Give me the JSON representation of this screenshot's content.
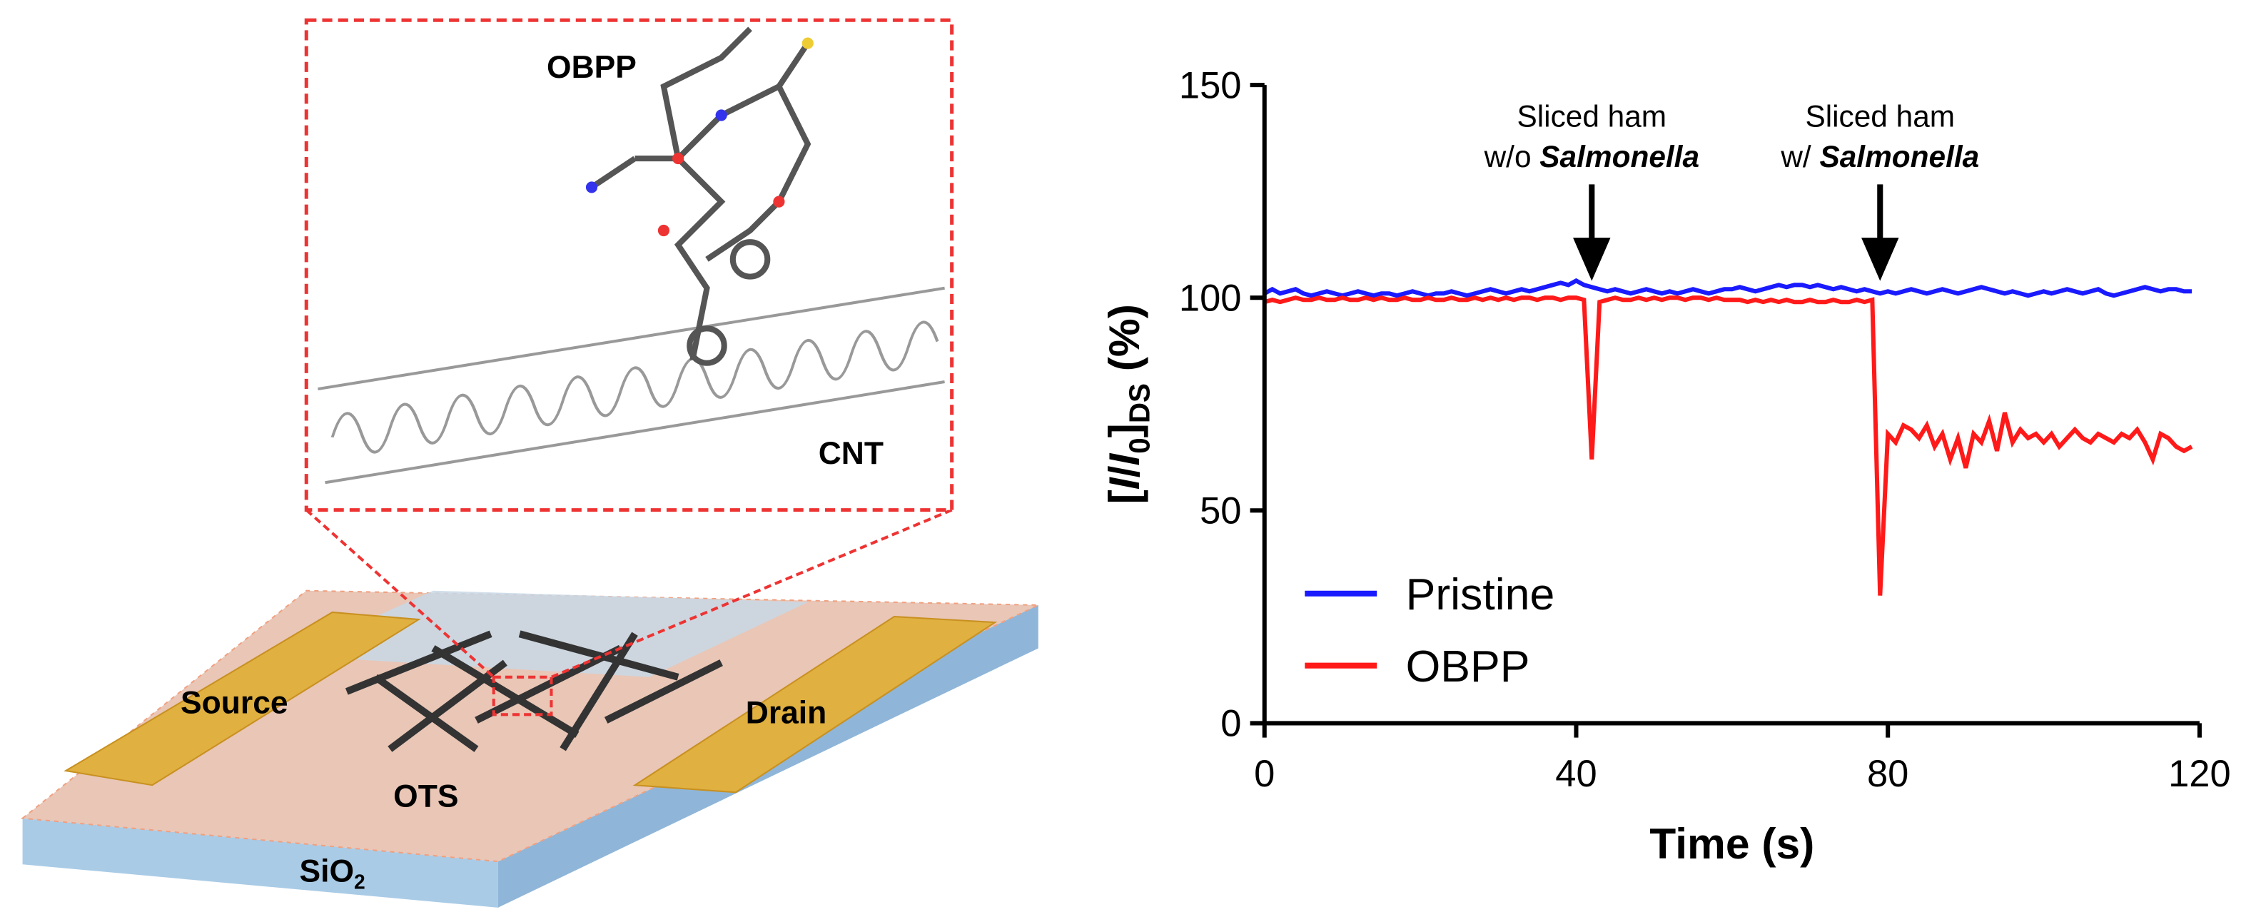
{
  "diagram": {
    "molecule": "OBPP",
    "tube": "CNT",
    "source": "Source",
    "drain": "Drain",
    "layer": "OTS",
    "substrate": "SiO",
    "substrate_sub": "2"
  },
  "chart_data": {
    "type": "line",
    "xlabel": "Time (s)",
    "ylabel": [
      {
        "text": "[",
        "style": "normal"
      },
      {
        "text": "I",
        "style": "italic"
      },
      {
        "text": "/",
        "style": "normal"
      },
      {
        "text": "I",
        "style": "italic"
      },
      {
        "text": "0",
        "style": "sub"
      },
      {
        "text": "]",
        "style": "normal"
      },
      {
        "text": "DS",
        "style": "sub"
      },
      {
        "text": " (%)",
        "style": "normal"
      }
    ],
    "annotations": [
      {
        "x": 42,
        "line1": "Sliced ham",
        "prefix": "w/o ",
        "italic": "Salmonella"
      },
      {
        "x": 79,
        "line1": "Sliced ham",
        "prefix": "w/ ",
        "italic": "Salmonella"
      }
    ],
    "x": [
      0,
      1,
      2,
      3,
      4,
      5,
      6,
      7,
      8,
      9,
      10,
      11,
      12,
      13,
      14,
      15,
      16,
      17,
      18,
      19,
      20,
      21,
      22,
      23,
      24,
      25,
      26,
      27,
      28,
      29,
      30,
      31,
      32,
      33,
      34,
      35,
      36,
      37,
      38,
      39,
      40,
      41,
      42,
      43,
      44,
      45,
      46,
      47,
      48,
      49,
      50,
      51,
      52,
      53,
      54,
      55,
      56,
      57,
      58,
      59,
      60,
      61,
      62,
      63,
      64,
      65,
      66,
      67,
      68,
      69,
      70,
      71,
      72,
      73,
      74,
      75,
      76,
      77,
      78,
      79,
      80,
      81,
      82,
      83,
      84,
      85,
      86,
      87,
      88,
      89,
      90,
      91,
      92,
      93,
      94,
      95,
      96,
      97,
      98,
      99,
      100,
      101,
      102,
      103,
      104,
      105,
      106,
      107,
      108,
      109,
      110,
      111,
      112,
      113,
      114,
      115,
      116,
      117,
      118,
      119
    ],
    "series": [
      {
        "name": "Pristine",
        "color": "#1a1aff",
        "values": [
          101,
          102,
          101,
          101.5,
          102,
          101,
          100.5,
          101,
          101.5,
          101,
          100.5,
          101,
          101.5,
          101,
          100.5,
          101,
          101,
          100.5,
          101,
          101.5,
          101,
          100.5,
          101,
          101,
          101.5,
          101,
          100.5,
          101,
          101.5,
          102,
          101.5,
          101,
          101.5,
          102,
          101.5,
          102,
          102.5,
          103,
          103.5,
          103,
          104,
          103,
          102.5,
          102,
          101.5,
          102,
          101.5,
          101,
          101.5,
          102,
          101.5,
          101,
          101.5,
          101,
          101.5,
          102,
          101.5,
          101,
          101.5,
          102,
          102,
          102.5,
          102,
          101.5,
          102,
          102.5,
          103,
          102.5,
          103,
          103,
          102.5,
          103,
          102.5,
          102,
          102.5,
          102,
          101.5,
          102,
          101.5,
          101,
          101.5,
          101,
          101.5,
          102,
          101.5,
          101,
          101.5,
          102,
          101.5,
          101,
          101.5,
          102,
          102.5,
          102,
          101.5,
          101,
          101.5,
          101,
          100.5,
          101,
          101.5,
          101,
          101.5,
          102,
          101.5,
          101,
          101.5,
          102,
          101,
          100.5,
          101,
          101.5,
          102,
          102.5,
          102,
          101.5,
          102,
          102,
          101.5,
          101.5
        ]
      },
      {
        "name": "OBPP",
        "color": "#ff1a1a",
        "values": [
          99,
          99.5,
          99,
          99.5,
          100,
          99.5,
          99.5,
          100,
          99.5,
          99.5,
          100,
          99.5,
          99.5,
          100,
          99.5,
          100,
          99.5,
          99.5,
          100,
          99.5,
          99.5,
          100,
          99.5,
          99.5,
          100,
          99.5,
          99.5,
          100,
          99.5,
          100,
          99.5,
          100,
          99.5,
          100,
          100,
          99.5,
          100,
          100,
          99.5,
          100,
          100,
          99.5,
          62,
          99,
          99.5,
          100,
          99.5,
          99.5,
          100,
          99.5,
          100,
          99.5,
          100,
          100,
          99.5,
          100,
          100,
          99.5,
          100,
          99.5,
          99.5,
          99.5,
          99,
          99.5,
          99,
          99.5,
          99,
          99.5,
          99,
          99,
          99.5,
          99,
          99,
          99.5,
          99,
          99,
          99.5,
          99,
          99.5,
          30,
          68,
          66,
          70,
          69,
          67,
          70,
          65,
          68,
          62,
          67,
          60,
          68,
          66,
          71,
          64,
          73,
          66,
          69,
          67,
          68,
          66,
          68,
          65,
          67,
          69,
          67,
          66,
          68,
          67,
          66,
          68,
          67,
          69,
          66,
          62,
          68,
          67,
          65,
          64,
          65
        ]
      }
    ],
    "xlim": [
      0,
      120
    ],
    "xticks": [
      0,
      40,
      80,
      120
    ],
    "ylim": [
      0,
      150
    ],
    "yticks": [
      0,
      50,
      100,
      150
    ],
    "legend": "lower left"
  }
}
